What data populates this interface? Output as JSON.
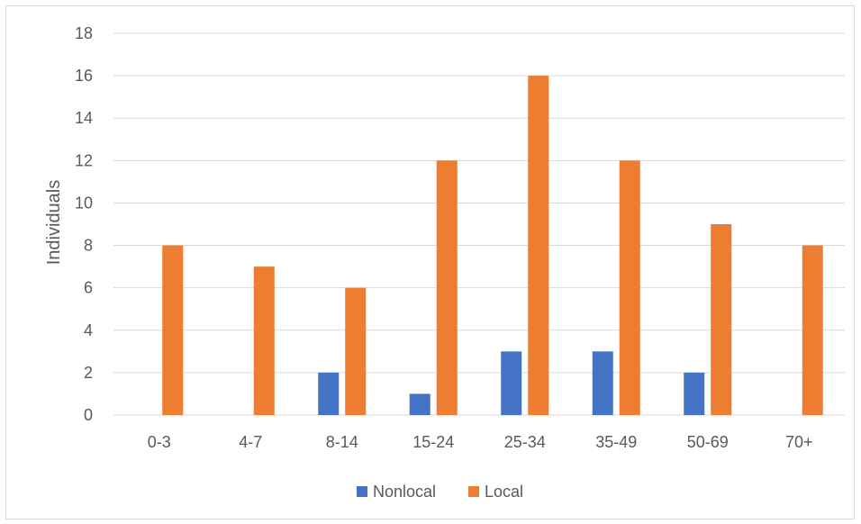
{
  "chart_data": {
    "type": "bar",
    "title": "",
    "xlabel": "",
    "ylabel": "Individuals",
    "ylim": [
      0,
      18
    ],
    "yticks": [
      0,
      2,
      4,
      6,
      8,
      10,
      12,
      14,
      16,
      18
    ],
    "grid": true,
    "legend_position": "bottom",
    "categories": [
      "0-3",
      "4-7",
      "8-14",
      "15-24",
      "25-34",
      "35-49",
      "50-69",
      "70+"
    ],
    "series": [
      {
        "name": "Nonlocal",
        "color": "#4472C4",
        "values": [
          0,
          0,
          2,
          1,
          3,
          3,
          2,
          0
        ]
      },
      {
        "name": "Local",
        "color": "#ED7D31",
        "values": [
          8,
          7,
          6,
          12,
          16,
          12,
          9,
          8
        ]
      }
    ]
  }
}
